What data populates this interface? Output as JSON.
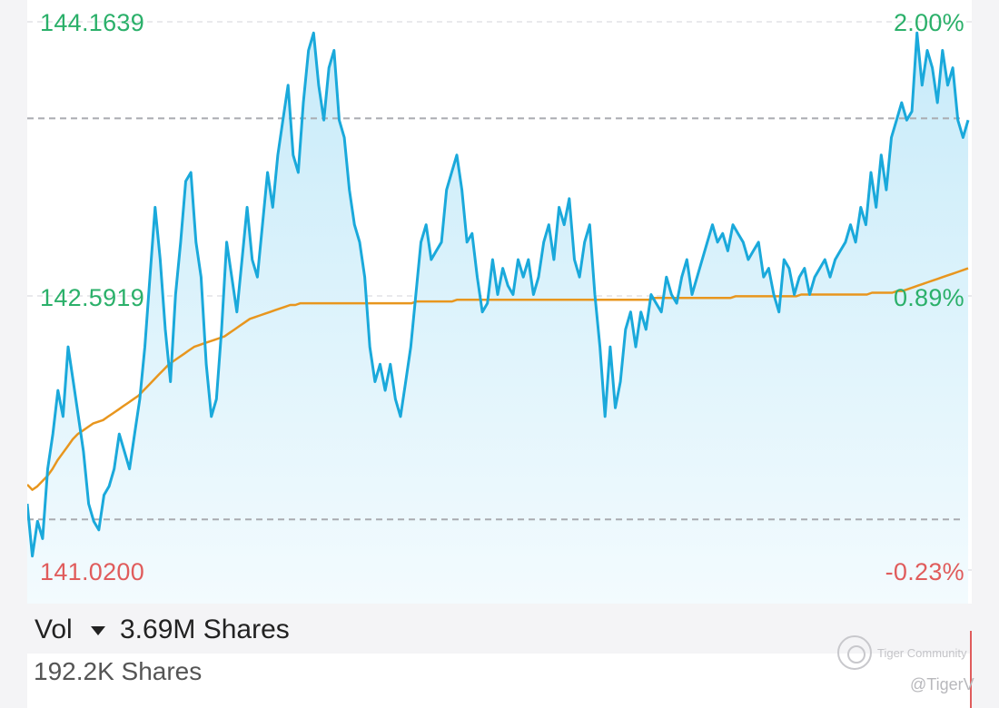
{
  "chart_data": {
    "type": "line",
    "price_axis": {
      "max": 144.1639,
      "mid": 142.5919,
      "min": 141.02
    },
    "change_axis": {
      "max": "2.00%",
      "mid": "0.89%",
      "min": "-0.23%"
    },
    "labels": {
      "price_max": "144.1639",
      "price_mid": "142.5919",
      "price_min": "141.0200",
      "pct_max": "2.00%",
      "pct_mid": "0.89%",
      "pct_min": "-0.23%"
    },
    "reference_lines": [
      143.61,
      141.31
    ],
    "grid": true,
    "series": [
      {
        "values": [
          141.4,
          141.1,
          141.3,
          141.2,
          141.6,
          141.8,
          142.05,
          141.9,
          142.3,
          142.1,
          141.9,
          141.7,
          141.4,
          141.3,
          141.25,
          141.45,
          141.5,
          141.6,
          141.8,
          141.7,
          141.6,
          141.8,
          142.0,
          142.3,
          142.7,
          143.1,
          142.8,
          142.4,
          142.1,
          142.6,
          142.9,
          143.25,
          143.3,
          142.9,
          142.7,
          142.2,
          141.9,
          142.0,
          142.4,
          142.9,
          142.7,
          142.5,
          142.8,
          143.1,
          142.8,
          142.7,
          143.0,
          143.3,
          143.1,
          143.4,
          143.6,
          143.8,
          143.4,
          143.3,
          143.7,
          144.0,
          144.1,
          143.8,
          143.6,
          143.9,
          144.0,
          143.6,
          143.5,
          143.2,
          143.0,
          142.9,
          142.7,
          142.3,
          142.1,
          142.2,
          142.05,
          142.2,
          142.0,
          141.9,
          142.1,
          142.3,
          142.6,
          142.9,
          143.0,
          142.8,
          142.85,
          142.9,
          143.2,
          143.3,
          143.4,
          143.2,
          142.9,
          142.95,
          142.7,
          142.5,
          142.55,
          142.8,
          142.6,
          142.75,
          142.65,
          142.6,
          142.8,
          142.7,
          142.8,
          142.6,
          142.7,
          142.9,
          143.0,
          142.8,
          143.1,
          143.0,
          143.15,
          142.8,
          142.7,
          142.9,
          143.0,
          142.6,
          142.3,
          141.9,
          142.3,
          141.95,
          142.1,
          142.4,
          142.5,
          142.3,
          142.5,
          142.4,
          142.6,
          142.55,
          142.5,
          142.7,
          142.6,
          142.55,
          142.7,
          142.8,
          142.6,
          142.7,
          142.8,
          142.9,
          143.0,
          142.9,
          142.95,
          142.85,
          143.0,
          142.95,
          142.9,
          142.8,
          142.85,
          142.9,
          142.7,
          142.75,
          142.6,
          142.5,
          142.8,
          142.75,
          142.6,
          142.7,
          142.75,
          142.6,
          142.7,
          142.75,
          142.8,
          142.7,
          142.8,
          142.85,
          142.9,
          143.0,
          142.9,
          143.1,
          143.0,
          143.3,
          143.1,
          143.4,
          143.2,
          143.5,
          143.6,
          143.7,
          143.6,
          143.65,
          144.1,
          143.8,
          144.0,
          143.9,
          143.7,
          144.0,
          143.8,
          143.9,
          143.6,
          143.5,
          143.6
        ]
      },
      {
        "values": [
          141.51,
          141.48,
          141.5,
          141.53,
          141.56,
          141.6,
          141.65,
          141.69,
          141.73,
          141.77,
          141.8,
          141.82,
          141.84,
          141.86,
          141.87,
          141.88,
          141.9,
          141.92,
          141.94,
          141.96,
          141.98,
          142.0,
          142.02,
          142.05,
          142.08,
          142.11,
          142.14,
          142.17,
          142.2,
          142.22,
          142.24,
          142.26,
          142.28,
          142.3,
          142.31,
          142.32,
          142.33,
          142.34,
          142.35,
          142.36,
          142.38,
          142.4,
          142.42,
          142.44,
          142.46,
          142.47,
          142.48,
          142.49,
          142.5,
          142.51,
          142.52,
          142.53,
          142.54,
          142.54,
          142.55,
          142.55,
          142.55,
          142.55,
          142.55,
          142.55,
          142.55,
          142.55,
          142.55,
          142.55,
          142.55,
          142.55,
          142.55,
          142.55,
          142.55,
          142.55,
          142.55,
          142.55,
          142.55,
          142.55,
          142.55,
          142.55,
          142.55,
          142.56,
          142.56,
          142.56,
          142.56,
          142.56,
          142.56,
          142.56,
          142.56,
          142.57,
          142.57,
          142.57,
          142.57,
          142.57,
          142.57,
          142.57,
          142.57,
          142.57,
          142.57,
          142.57,
          142.57,
          142.57,
          142.57,
          142.57,
          142.57,
          142.57,
          142.57,
          142.57,
          142.57,
          142.57,
          142.57,
          142.57,
          142.57,
          142.57,
          142.57,
          142.57,
          142.57,
          142.57,
          142.57,
          142.57,
          142.57,
          142.57,
          142.57,
          142.57,
          142.57,
          142.57,
          142.57,
          142.57,
          142.58,
          142.58,
          142.58,
          142.58,
          142.58,
          142.58,
          142.58,
          142.58,
          142.58,
          142.58,
          142.58,
          142.58,
          142.58,
          142.58,
          142.58,
          142.58,
          142.59,
          142.59,
          142.59,
          142.59,
          142.59,
          142.59,
          142.59,
          142.59,
          142.59,
          142.59,
          142.59,
          142.59,
          142.59,
          142.6,
          142.6,
          142.6,
          142.6,
          142.6,
          142.6,
          142.6,
          142.6,
          142.6,
          142.6,
          142.6,
          142.6,
          142.6,
          142.6,
          142.61,
          142.61,
          142.61,
          142.61,
          142.61,
          142.62,
          142.62,
          142.63,
          142.64,
          142.65,
          142.66,
          142.67,
          142.68,
          142.69,
          142.7,
          142.71,
          142.72,
          142.73,
          142.74,
          142.75
        ]
      }
    ]
  },
  "colors": {
    "price_line": "#1aa9db",
    "price_fill_top": "#c8ebf9",
    "price_fill_bottom": "#f3fbfe",
    "avg_line": "#e8961e",
    "positive": "#2bb06a",
    "negative": "#e05c5c",
    "grid": "#e2e2e6",
    "ref_line": "#a9abb0"
  },
  "volume": {
    "label": "Vol",
    "total": "3.69M Shares",
    "max": "192.2K Shares",
    "arrow_icon": "caret-down-icon"
  },
  "watermark": {
    "community": "Tiger Community",
    "handle": "@TigerV",
    "logo_icon": "tiger-logo-icon"
  }
}
